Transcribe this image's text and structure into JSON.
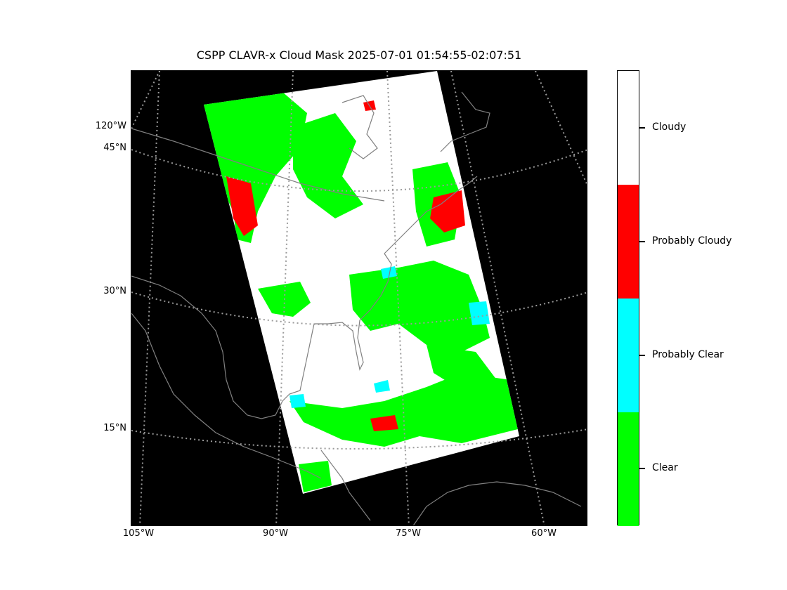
{
  "title": "CSPP CLAVR-x Cloud Mask 2025-07-01 01:54:55-02:07:51",
  "map": {
    "background_color": "#000000",
    "coastline_color": "#808080",
    "graticule_color": "#9a9a9a",
    "projection_note": "conic",
    "lat_labels": [
      "45°N",
      "30°N",
      "15°N"
    ],
    "lon_labels_left": [
      "120°W"
    ],
    "lon_labels_bottom": [
      "105°W",
      "90°W",
      "75°W",
      "60°W"
    ]
  },
  "legend": {
    "colorbar": [
      {
        "label": "Cloudy",
        "color": "#ffffff"
      },
      {
        "label": "Probably Cloudy",
        "color": "#ff0000"
      },
      {
        "label": "Probably Clear",
        "color": "#00ffff"
      },
      {
        "label": "Clear",
        "color": "#00ff00"
      }
    ]
  }
}
